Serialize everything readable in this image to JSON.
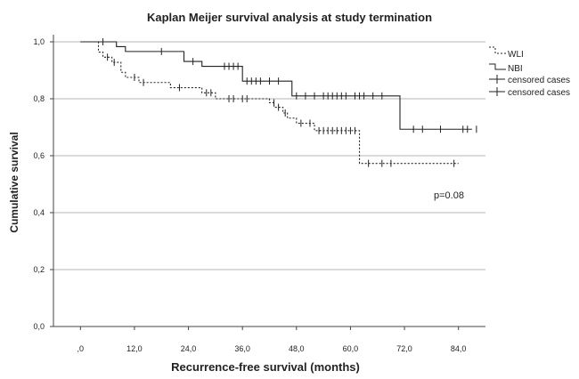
{
  "chart_data": {
    "type": "line",
    "title": "Kaplan Meijer survival analysis at study termination",
    "xlabel": "Recurrence-free survival (months)",
    "ylabel": "Cumulative survival",
    "xlim": [
      -6,
      90
    ],
    "ylim": [
      0,
      1.0
    ],
    "x_ticks": [
      0,
      12,
      24,
      36,
      48,
      60,
      72,
      84
    ],
    "x_tick_labels": [
      ",0",
      "12,0",
      "24,0",
      "36,0",
      "48,0",
      "60,0",
      "72,0",
      "84,0"
    ],
    "y_ticks": [
      0,
      0.2,
      0.4,
      0.6,
      0.8,
      1.0
    ],
    "y_tick_labels": [
      "0,0",
      "0,2",
      "0,4",
      "0,6",
      "0,8",
      "1,0"
    ],
    "grid": "horizontal",
    "legend_position": "right",
    "annotation": "p=0.08",
    "series": [
      {
        "name": "WLI",
        "style": "dashed",
        "steps": [
          [
            0,
            1.0
          ],
          [
            4,
            0.964
          ],
          [
            5,
            0.946
          ],
          [
            7,
            0.928
          ],
          [
            9,
            0.893
          ],
          [
            10,
            0.875
          ],
          [
            13,
            0.857
          ],
          [
            20,
            0.839
          ],
          [
            27,
            0.821
          ],
          [
            30,
            0.8
          ],
          [
            42,
            0.786
          ],
          [
            43,
            0.77
          ],
          [
            45,
            0.75
          ],
          [
            46,
            0.732
          ],
          [
            48,
            0.714
          ],
          [
            52,
            0.688
          ],
          [
            62,
            0.573
          ],
          [
            84,
            0.573
          ]
        ],
        "censored": [
          [
            6,
            0.946
          ],
          [
            7.5,
            0.928
          ],
          [
            12,
            0.875
          ],
          [
            14,
            0.857
          ],
          [
            22,
            0.839
          ],
          [
            28,
            0.821
          ],
          [
            29,
            0.821
          ],
          [
            33,
            0.8
          ],
          [
            34,
            0.8
          ],
          [
            36,
            0.8
          ],
          [
            37,
            0.8
          ],
          [
            43,
            0.786
          ],
          [
            44,
            0.77
          ],
          [
            45.5,
            0.75
          ],
          [
            49,
            0.714
          ],
          [
            51,
            0.714
          ],
          [
            53,
            0.688
          ],
          [
            54,
            0.688
          ],
          [
            55,
            0.688
          ],
          [
            56,
            0.688
          ],
          [
            57,
            0.688
          ],
          [
            58,
            0.688
          ],
          [
            59,
            0.688
          ],
          [
            60,
            0.688
          ],
          [
            61,
            0.688
          ],
          [
            64,
            0.573
          ],
          [
            67,
            0.573
          ],
          [
            69,
            0.573
          ],
          [
            83,
            0.573
          ]
        ]
      },
      {
        "name": "NBI",
        "style": "solid",
        "steps": [
          [
            0,
            1.0
          ],
          [
            8,
            0.983
          ],
          [
            10,
            0.966
          ],
          [
            23,
            0.931
          ],
          [
            27,
            0.914
          ],
          [
            36,
            0.862
          ],
          [
            47,
            0.81
          ],
          [
            71,
            0.693
          ],
          [
            87,
            0.693
          ]
        ],
        "censored": [
          [
            5,
            1.0
          ],
          [
            18,
            0.966
          ],
          [
            25,
            0.931
          ],
          [
            32,
            0.914
          ],
          [
            33,
            0.914
          ],
          [
            34,
            0.914
          ],
          [
            35,
            0.914
          ],
          [
            37,
            0.862
          ],
          [
            38,
            0.862
          ],
          [
            39,
            0.862
          ],
          [
            40,
            0.862
          ],
          [
            42,
            0.862
          ],
          [
            44,
            0.862
          ],
          [
            48,
            0.81
          ],
          [
            50,
            0.81
          ],
          [
            52,
            0.81
          ],
          [
            54,
            0.81
          ],
          [
            55,
            0.81
          ],
          [
            56,
            0.81
          ],
          [
            57,
            0.81
          ],
          [
            58,
            0.81
          ],
          [
            59,
            0.81
          ],
          [
            61,
            0.81
          ],
          [
            62,
            0.81
          ],
          [
            63,
            0.81
          ],
          [
            65,
            0.81
          ],
          [
            67,
            0.81
          ],
          [
            74,
            0.693
          ],
          [
            76,
            0.693
          ],
          [
            80,
            0.693
          ],
          [
            85,
            0.693
          ],
          [
            86,
            0.693
          ],
          [
            88,
            0.693
          ]
        ]
      }
    ],
    "legend": [
      "WLI",
      "NBI",
      "censored cases",
      "censored cases"
    ]
  }
}
